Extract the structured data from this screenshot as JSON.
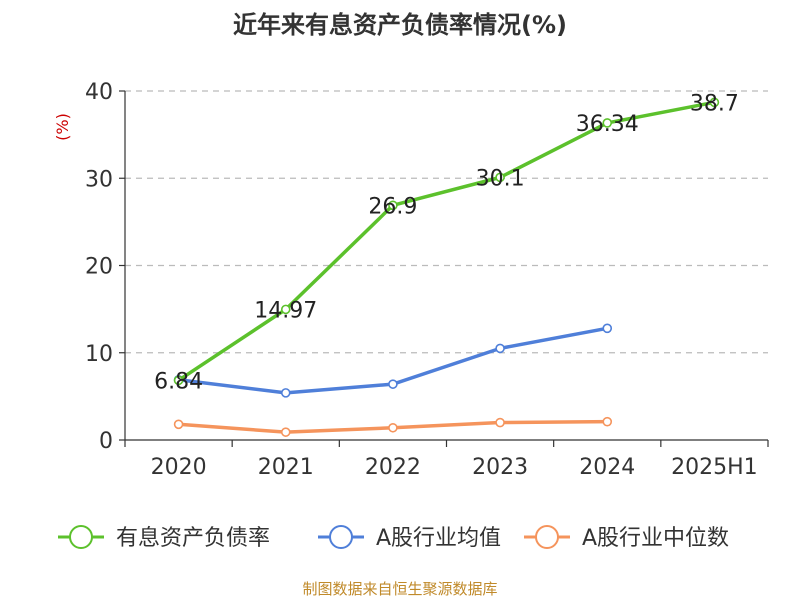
{
  "chart_data": {
    "type": "line",
    "title": "近年来有息资产负债率情况(%)",
    "ylabel": "(%)",
    "xlabel": "",
    "categories": [
      "2020",
      "2021",
      "2022",
      "2023",
      "2024",
      "2025H1"
    ],
    "ylim": [
      0,
      40
    ],
    "yticks": [
      0,
      10,
      20,
      30,
      40
    ],
    "grid": true,
    "legend_position": "bottom",
    "series": [
      {
        "name": "有息资产负债率",
        "color": "#5cc12c",
        "values": [
          6.84,
          14.97,
          26.9,
          30.1,
          36.34,
          38.7
        ],
        "labels": [
          "6.84",
          "14.97",
          "26.9",
          "30.1",
          "36.34",
          "38.7"
        ]
      },
      {
        "name": "A股行业均值",
        "color": "#4f7fd9",
        "values": [
          6.9,
          5.4,
          6.4,
          10.5,
          12.8,
          null
        ]
      },
      {
        "name": "A股行业中位数",
        "color": "#f5945c",
        "values": [
          1.8,
          0.9,
          1.4,
          2.0,
          2.1,
          null
        ]
      }
    ]
  },
  "source": "制图数据来自恒生聚源数据库"
}
